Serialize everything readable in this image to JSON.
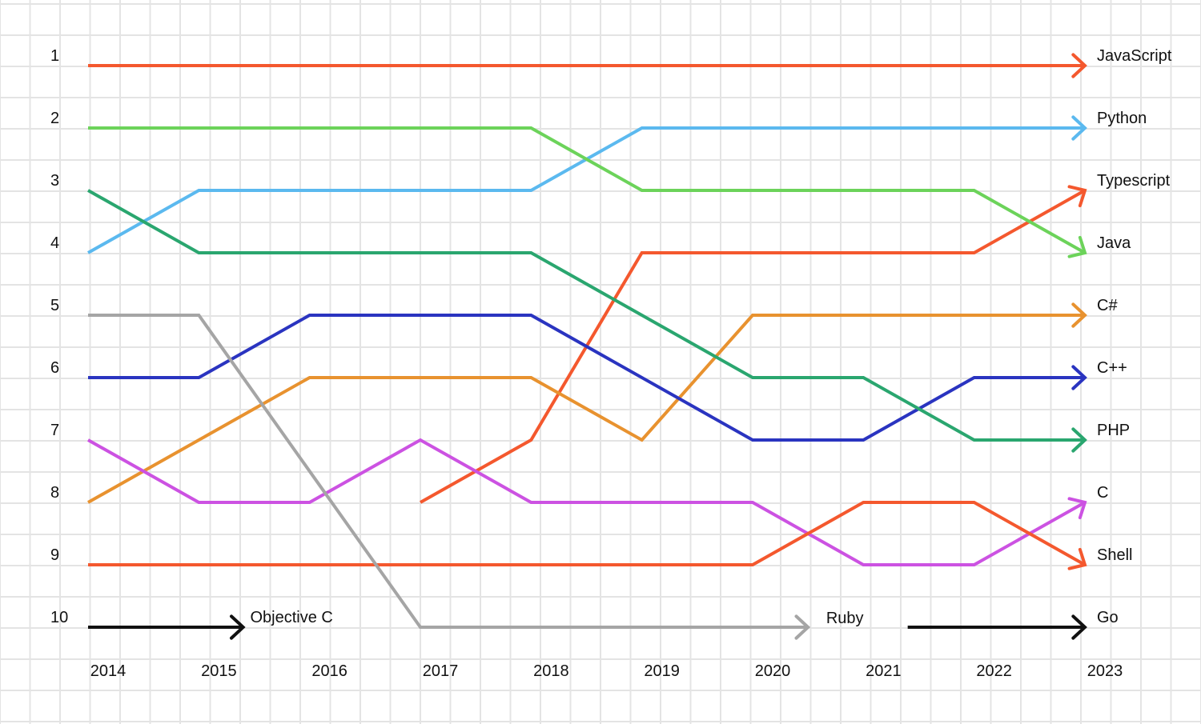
{
  "chart_data": {
    "type": "line",
    "subtype": "bump",
    "title": "",
    "xlabel": "",
    "ylabel": "",
    "x": [
      2014,
      2015,
      2016,
      2017,
      2018,
      2019,
      2020,
      2021,
      2022,
      2023
    ],
    "x_labels": [
      "2014",
      "2015",
      "2016",
      "2017",
      "2018",
      "2019",
      "2020",
      "2021",
      "2022",
      "2023"
    ],
    "ranks": [
      1,
      2,
      3,
      4,
      5,
      6,
      7,
      8,
      9,
      10
    ],
    "rank_labels": [
      "1",
      "2",
      "3",
      "4",
      "5",
      "6",
      "7",
      "8",
      "9",
      "10"
    ],
    "y_inverted": true,
    "grid": true,
    "series": [
      {
        "name": "JavaScript",
        "color": "#f4582e",
        "x": [
          2014,
          2023
        ],
        "values": [
          1,
          1
        ],
        "end_label": true
      },
      {
        "name": "Python",
        "color": "#5bb9ef",
        "x": [
          2014,
          2015,
          2018,
          2019,
          2023
        ],
        "values": [
          4,
          3,
          3,
          2,
          2
        ],
        "end_label": true
      },
      {
        "name": "Typescript",
        "color": "#f4582e",
        "x": [
          2017,
          2018,
          2019,
          2022,
          2023
        ],
        "values": [
          8,
          7,
          4,
          4,
          3
        ],
        "end_label": true
      },
      {
        "name": "Java",
        "color": "#6cd35a",
        "x": [
          2014,
          2018,
          2019,
          2022,
          2023
        ],
        "values": [
          2,
          2,
          3,
          3,
          4
        ],
        "end_label": true
      },
      {
        "name": "C#",
        "color": "#e8922f",
        "x": [
          2014,
          2015,
          2016,
          2018,
          2019,
          2020,
          2023
        ],
        "values": [
          8,
          7,
          6,
          6,
          7,
          5,
          5
        ],
        "end_label": true
      },
      {
        "name": "C++",
        "color": "#2a34c0",
        "x": [
          2014,
          2015,
          2016,
          2018,
          2020,
          2021,
          2022,
          2023
        ],
        "values": [
          6,
          6,
          5,
          5,
          7,
          7,
          6,
          6
        ],
        "end_label": true
      },
      {
        "name": "PHP",
        "color": "#2aa66f",
        "x": [
          2014,
          2015,
          2018,
          2020,
          2021,
          2022,
          2023
        ],
        "values": [
          3,
          4,
          4,
          6,
          6,
          7,
          7
        ],
        "end_label": true
      },
      {
        "name": "C",
        "color": "#cc52e2",
        "x": [
          2014,
          2015,
          2016,
          2017,
          2018,
          2020,
          2021,
          2022,
          2023
        ],
        "values": [
          7,
          8,
          8,
          7,
          8,
          8,
          9,
          9,
          8
        ],
        "end_label": true
      },
      {
        "name": "Shell",
        "color": "#f4582e",
        "x": [
          2014,
          2020,
          2021,
          2022,
          2023
        ],
        "values": [
          9,
          9,
          8,
          8,
          9
        ],
        "end_label": true
      },
      {
        "name": "Ruby",
        "color": "#a5a5a5",
        "x": [
          2014,
          2015,
          2017,
          2020.5
        ],
        "values": [
          5,
          5,
          10,
          10
        ],
        "end_label": false
      },
      {
        "name": "Objective C",
        "color": "#111111",
        "x": [
          2014,
          2015.4
        ],
        "values": [
          10,
          10
        ],
        "end_label": false
      },
      {
        "name": "Go",
        "color": "#111111",
        "x": [
          2021.4,
          2023
        ],
        "values": [
          10,
          10
        ],
        "end_label": true
      }
    ],
    "inline_labels": [
      {
        "text": "Objective C",
        "x": 2015.5,
        "rank": 10
      },
      {
        "text": "Ruby",
        "x": 2020.7,
        "rank": 10
      }
    ]
  }
}
